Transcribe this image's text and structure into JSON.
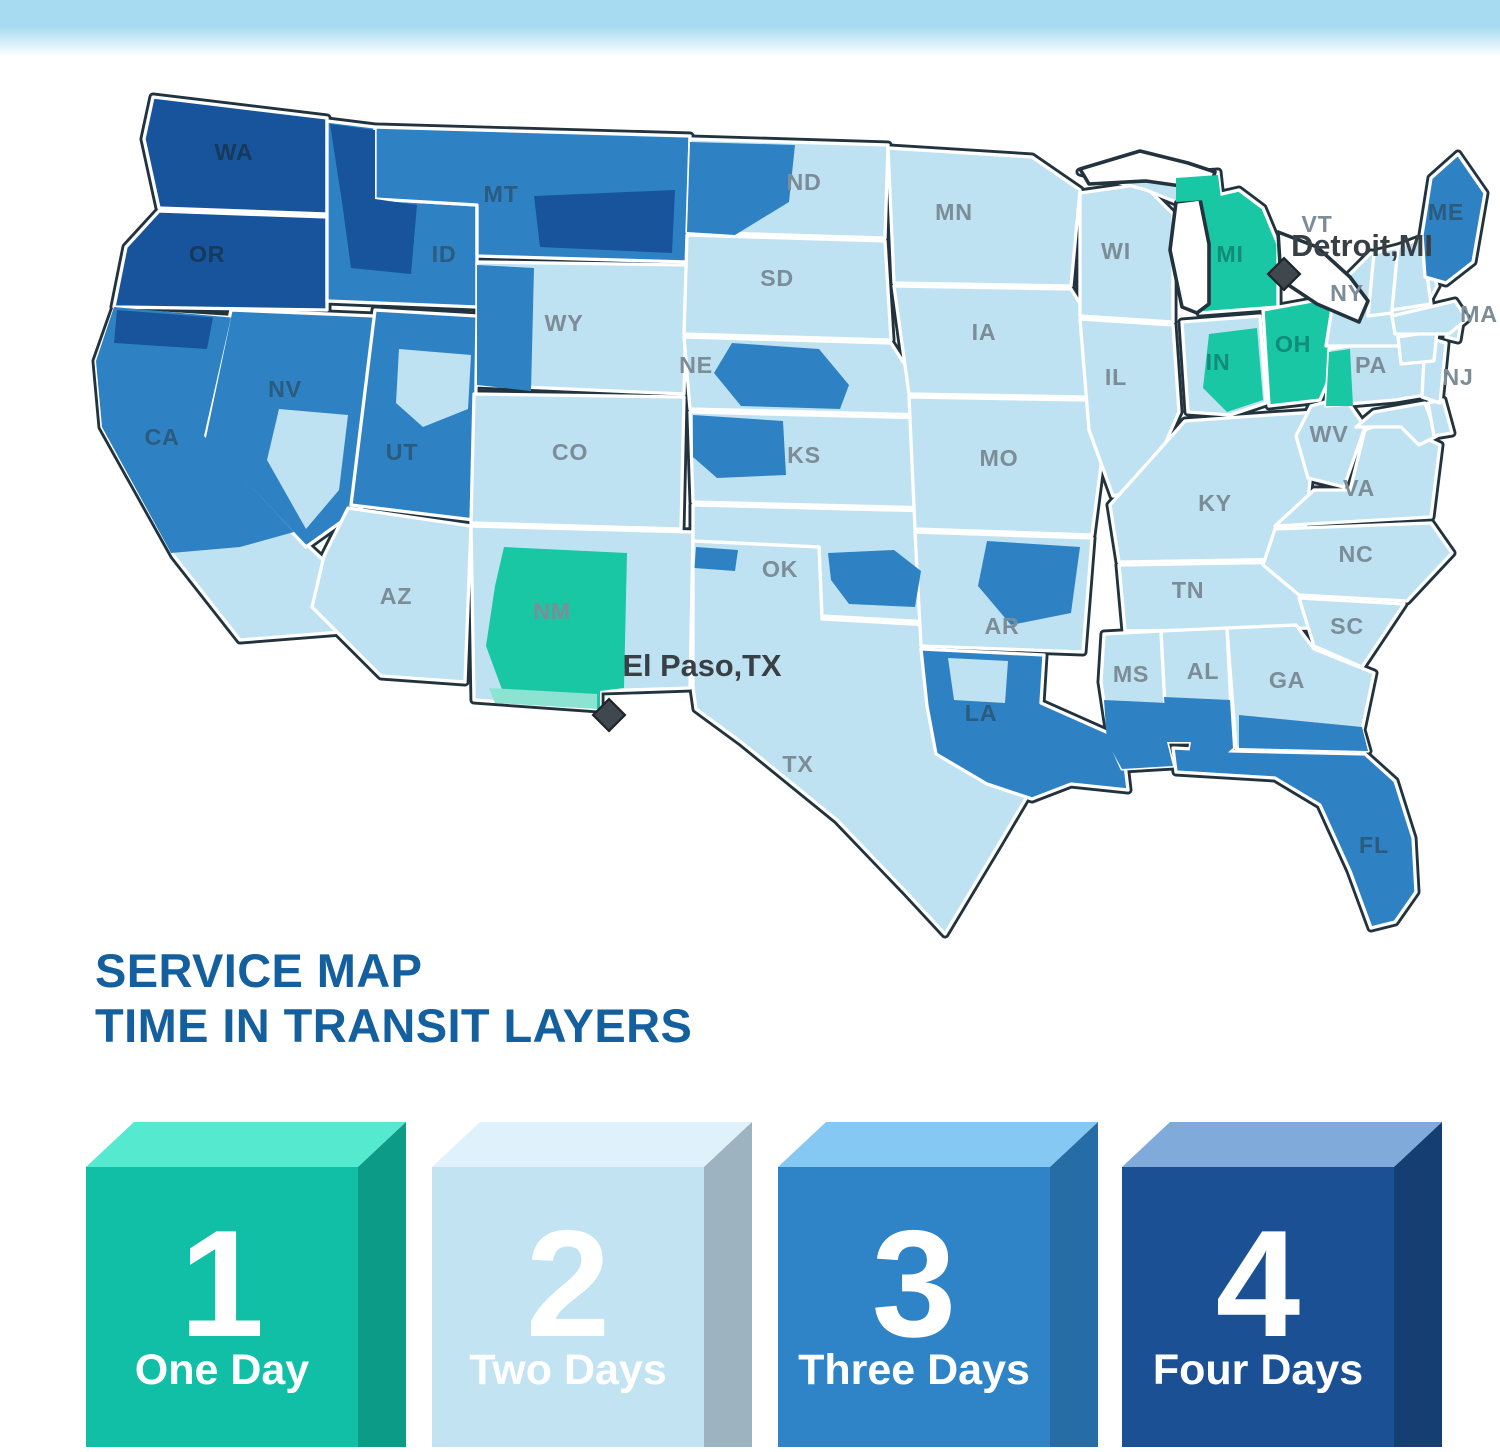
{
  "top_bar": {
    "color": "#A7DBF2"
  },
  "title": {
    "line1": "SERVICE MAP",
    "line2": "TIME IN TRANSIT LAYERS",
    "color": "#14609F"
  },
  "day_colors": {
    "1": "#1AC7A5",
    "2": "#BFE2F3",
    "3": "#2E82C4",
    "4": "#17549B"
  },
  "label_colors": {
    "1": "#0F8D79",
    "2": "#7C8D98",
    "3": "#2B5B7E",
    "4": "#17395B"
  },
  "outline_color": "#22333E",
  "markers": [
    {
      "label": "Detroit,MI"
    },
    {
      "label": "El Paso,TX"
    }
  ],
  "legend": [
    {
      "number": "1",
      "label": "One Day",
      "front": "#10BFA5",
      "top": "#55E9D0",
      "side": "#0B9B87"
    },
    {
      "number": "2",
      "label": "Two Days",
      "front": "#C2E3F2",
      "top": "#DFF2FB",
      "side": "#9EB3C0"
    },
    {
      "number": "3",
      "label": "Three Days",
      "front": "#2E84C6",
      "top": "#85C8F3",
      "side": "#266DA5"
    },
    {
      "number": "4",
      "label": "Four Days",
      "front": "#1C5094",
      "top": "#80AADA",
      "side": "#153E72"
    }
  ],
  "map": {
    "states": [
      {
        "code": "WA",
        "label": "WA",
        "days": 4
      },
      {
        "code": "OR",
        "label": "OR",
        "days": 4
      },
      {
        "code": "CA",
        "label": "CA",
        "days": 2
      },
      {
        "code": "NV",
        "label": "NV",
        "days": 3
      },
      {
        "code": "ID",
        "label": "ID",
        "days": 3
      },
      {
        "code": "MT",
        "label": "MT",
        "days": 3
      },
      {
        "code": "WY",
        "label": "WY",
        "days": 2
      },
      {
        "code": "UT",
        "label": "UT",
        "days": 3
      },
      {
        "code": "CO",
        "label": "CO",
        "days": 2
      },
      {
        "code": "AZ",
        "label": "AZ",
        "days": 2
      },
      {
        "code": "NM",
        "label": "NM",
        "days": 2
      },
      {
        "code": "ND",
        "label": "ND",
        "days": 2
      },
      {
        "code": "SD",
        "label": "SD",
        "days": 2
      },
      {
        "code": "NE",
        "label": "NE",
        "days": 2
      },
      {
        "code": "KS",
        "label": "KS",
        "days": 2
      },
      {
        "code": "OK",
        "label": "OK",
        "days": 2
      },
      {
        "code": "TX",
        "label": "TX",
        "days": 2
      },
      {
        "code": "MN",
        "label": "MN",
        "days": 2
      },
      {
        "code": "IA",
        "label": "IA",
        "days": 2
      },
      {
        "code": "MO",
        "label": "MO",
        "days": 2
      },
      {
        "code": "AR",
        "label": "AR",
        "days": 2
      },
      {
        "code": "LA",
        "label": "LA",
        "days": 3
      },
      {
        "code": "WI",
        "label": "WI",
        "days": 2
      },
      {
        "code": "IL",
        "label": "IL",
        "days": 2
      },
      {
        "code": "MIU",
        "label": "",
        "days": 2
      },
      {
        "code": "MI",
        "label": "MI",
        "days": 1
      },
      {
        "code": "IN",
        "label": "IN",
        "days": 2
      },
      {
        "code": "OH",
        "label": "OH",
        "days": 1
      },
      {
        "code": "KY",
        "label": "KY",
        "days": 2
      },
      {
        "code": "TN",
        "label": "TN",
        "days": 2
      },
      {
        "code": "MS",
        "label": "MS",
        "days": 2
      },
      {
        "code": "AL",
        "label": "AL",
        "days": 2
      },
      {
        "code": "GA",
        "label": "GA",
        "days": 2
      },
      {
        "code": "FL",
        "label": "FL",
        "days": 3
      },
      {
        "code": "SC",
        "label": "SC",
        "days": 2
      },
      {
        "code": "NC",
        "label": "NC",
        "days": 2
      },
      {
        "code": "VA",
        "label": "VA",
        "days": 2
      },
      {
        "code": "WV",
        "label": "WV",
        "days": 2
      },
      {
        "code": "MD",
        "label": "",
        "days": 2
      },
      {
        "code": "DE",
        "label": "",
        "days": 2
      },
      {
        "code": "PA",
        "label": "PA",
        "days": 2
      },
      {
        "code": "NJ",
        "label": "NJ",
        "days": 2
      },
      {
        "code": "NY",
        "label": "NY",
        "days": 2
      },
      {
        "code": "CT",
        "label": "",
        "days": 2
      },
      {
        "code": "RI",
        "label": "",
        "days": 2
      },
      {
        "code": "MA",
        "label": "MA",
        "days": 2
      },
      {
        "code": "VT",
        "label": "VT",
        "days": 2
      },
      {
        "code": "NH",
        "label": "",
        "days": 2
      },
      {
        "code": "ME",
        "label": "ME",
        "days": 3
      }
    ],
    "patches": [
      {
        "id": "ca-north",
        "days": 3
      },
      {
        "id": "ca-top",
        "days": 4
      },
      {
        "id": "id-west",
        "days": 4
      },
      {
        "id": "mt-east",
        "days": 4
      },
      {
        "id": "nd-west",
        "days": 3
      },
      {
        "id": "ne-central",
        "days": 3
      },
      {
        "id": "ks-nw",
        "days": 3
      },
      {
        "id": "ok-east",
        "days": 3
      },
      {
        "id": "ar-central",
        "days": 3
      },
      {
        "id": "tx-nw",
        "days": 3
      },
      {
        "id": "wy-west",
        "days": 3
      },
      {
        "id": "ut-center",
        "days": 2
      },
      {
        "id": "nv-se",
        "days": 2
      },
      {
        "id": "la-north",
        "days": 2
      },
      {
        "id": "ms-south",
        "days": 3
      },
      {
        "id": "al-south",
        "days": 3
      },
      {
        "id": "ga-south",
        "days": 3
      },
      {
        "id": "in-central",
        "days": 1
      },
      {
        "id": "pa-west",
        "days": 1
      },
      {
        "id": "up-east",
        "days": 1
      },
      {
        "id": "nm-central",
        "days": 1
      },
      {
        "id": "nm-south",
        "color": "#8CE3D2"
      }
    ],
    "label_shade_override": {
      "CA": 3,
      "IN": 1
    }
  }
}
